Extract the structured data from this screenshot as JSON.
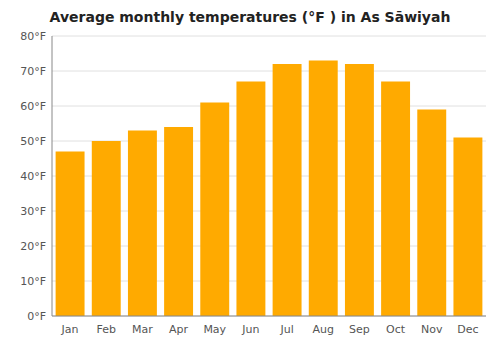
{
  "chart_data": {
    "type": "bar",
    "title": "Average monthly temperatures (°F ) in As Sāwiyah",
    "categories": [
      "Jan",
      "Feb",
      "Mar",
      "Apr",
      "May",
      "Jun",
      "Jul",
      "Aug",
      "Sep",
      "Oct",
      "Nov",
      "Dec"
    ],
    "values": [
      47,
      50,
      53,
      54,
      61,
      67,
      72,
      73,
      72,
      67,
      59,
      51
    ],
    "color": "#FFAA00",
    "ylim": [
      0,
      80
    ],
    "yticks": [
      {
        "value": 0,
        "label": "0°F"
      },
      {
        "value": 10,
        "label": "10°F"
      },
      {
        "value": 20,
        "label": "20°F"
      },
      {
        "value": 30,
        "label": "30°F"
      },
      {
        "value": 40,
        "label": "40°F"
      },
      {
        "value": 50,
        "label": "50°F"
      },
      {
        "value": 60,
        "label": "60°F"
      },
      {
        "value": 70,
        "label": "70°F"
      },
      {
        "value": 80,
        "label": "80°F"
      }
    ],
    "grid": true
  }
}
